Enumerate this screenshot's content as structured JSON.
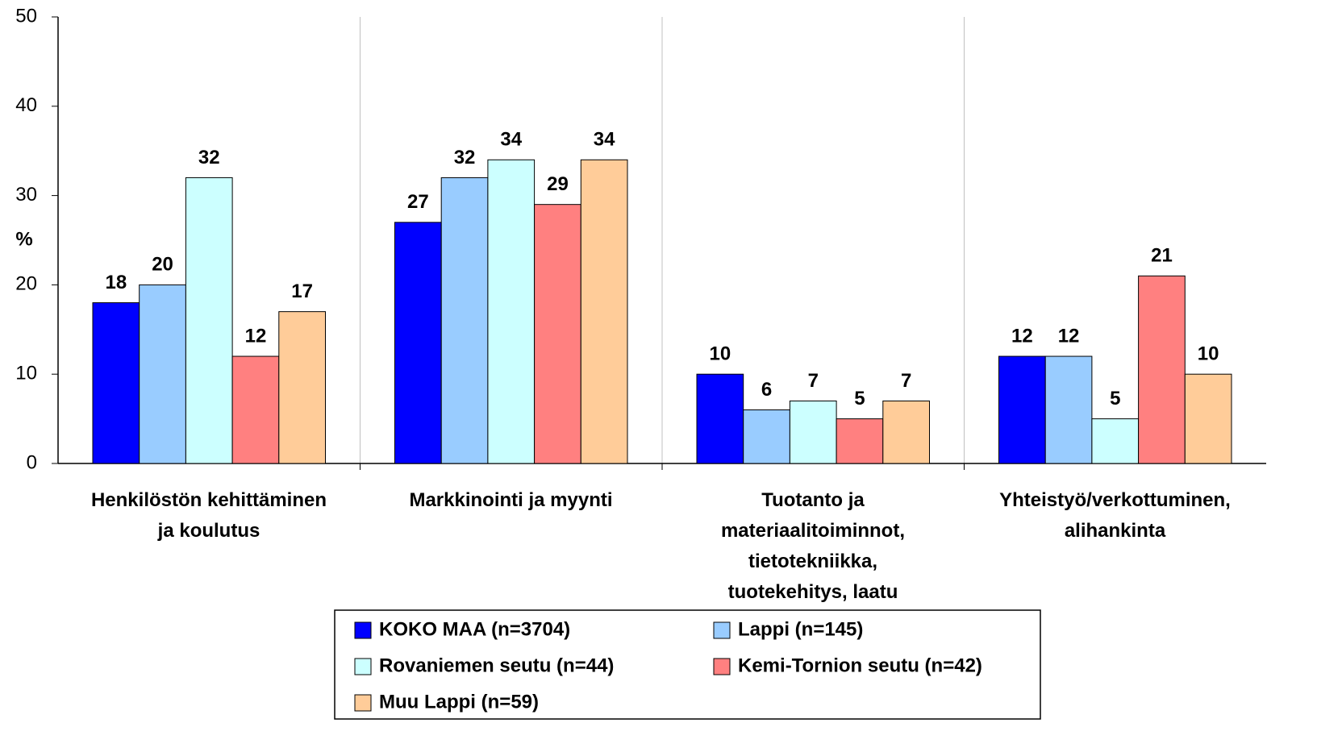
{
  "chart_data": {
    "type": "bar",
    "y_label": "%",
    "categories": [
      "Henkilöstön kehittäminen\nja koulutus",
      "Markkinointi ja myynti",
      "Tuotanto ja\nmateriaalitoiminnot,\ntietotekniikka,\ntuotekehitys, laatu",
      "Yhteistyö/verkottuminen,\nalihankinta"
    ],
    "series": [
      {
        "name": "KOKO MAA (n=3704)",
        "color": "#0000ff",
        "values": [
          18,
          27,
          10,
          12
        ]
      },
      {
        "name": "Lappi (n=145)",
        "color": "#99ccff",
        "values": [
          20,
          32,
          6,
          12
        ]
      },
      {
        "name": "Rovaniemen seutu (n=44)",
        "color": "#ccffff",
        "values": [
          32,
          34,
          7,
          5
        ]
      },
      {
        "name": "Kemi-Tornion seutu (n=42)",
        "color": "#ff8080",
        "values": [
          12,
          29,
          5,
          21
        ]
      },
      {
        "name": "Muu Lappi (n=59)",
        "color": "#ffcc99",
        "values": [
          17,
          34,
          7,
          10
        ]
      }
    ],
    "ylim": [
      0,
      50
    ],
    "yticks": [
      0,
      10,
      20,
      30,
      40,
      50
    ],
    "legend": "bottom"
  }
}
